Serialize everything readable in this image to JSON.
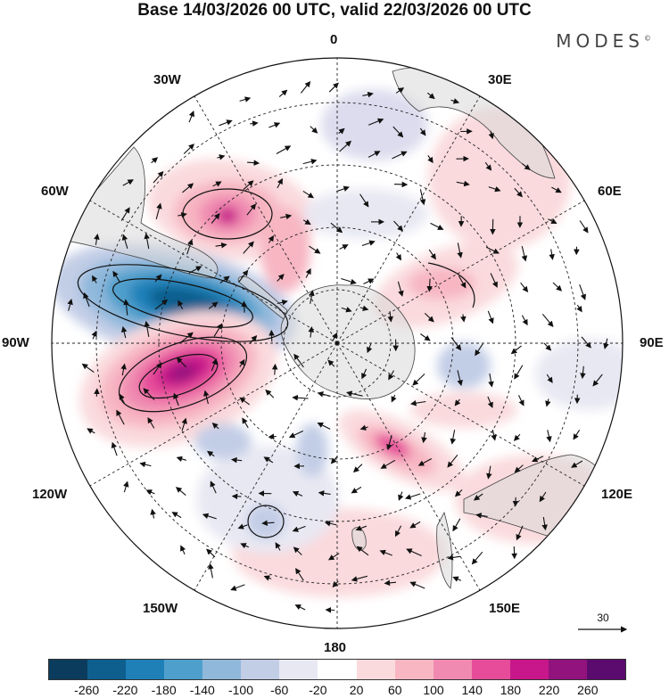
{
  "title": "Base 14/03/2026 00 UTC, valid 22/03/2026 00 UTC",
  "brand": "MODES",
  "brand_mark": "©",
  "longitude_labels": {
    "lon_0": "0",
    "lon_30e": "30E",
    "lon_60e": "60E",
    "lon_90e": "90E",
    "lon_120e": "120E",
    "lon_150e": "150E",
    "lon_180": "180",
    "lon_150w": "150W",
    "lon_120w": "120W",
    "lon_90w": "90W",
    "lon_60w": "60W",
    "lon_30w": "30W"
  },
  "reference_vector": {
    "label": "30"
  },
  "colorbar": {
    "colors": [
      "#0b3c5d",
      "#0e5f8e",
      "#1f80b8",
      "#4f9fcc",
      "#8fb8db",
      "#c2cde6",
      "#e8e8f3",
      "#ffffff",
      "#fadadd",
      "#f7b6c2",
      "#f08ab1",
      "#e64c9a",
      "#c7178a",
      "#92137e",
      "#5b0a6e"
    ],
    "ticks": [
      "-260",
      "-220",
      "-180",
      "-140",
      "-100",
      "-60",
      "-20",
      "20",
      "60",
      "100",
      "140",
      "180",
      "220",
      "260"
    ]
  }
}
